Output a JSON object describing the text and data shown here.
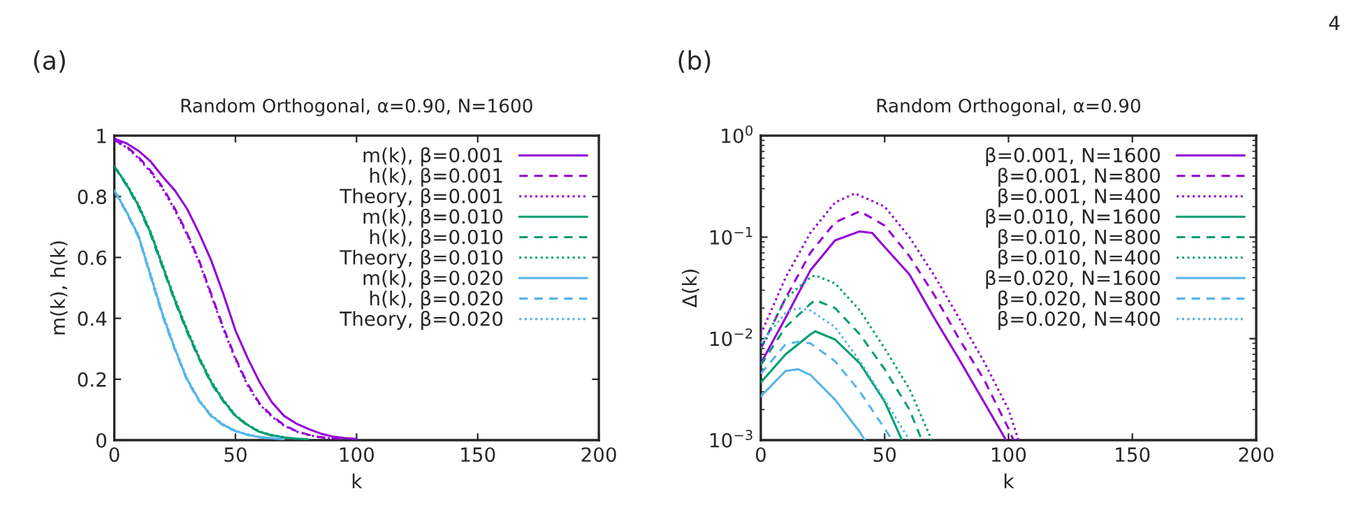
{
  "chart_data": [
    {
      "type": "line",
      "title": "Random Orthogonal, α=0.90, N=1600",
      "xlabel": "k",
      "ylabel": "m(k), h(k)",
      "annotations": [
        "(a)"
      ],
      "x": [
        0,
        5,
        10,
        15,
        20,
        25,
        30,
        35,
        40,
        45,
        50,
        55,
        60,
        65,
        70,
        75,
        80,
        85,
        90,
        95,
        100
      ],
      "xlim": [
        0,
        200
      ],
      "xticks": [
        0,
        50,
        100,
        150,
        200
      ],
      "ylim": [
        0,
        1
      ],
      "yticks": [
        0,
        0.2,
        0.4,
        0.6,
        0.8,
        1
      ],
      "grid": false,
      "legend": "top right",
      "series": [
        {
          "name": "m(k), β=0.001",
          "color": "#9400d3",
          "line_style": "solid",
          "values": [
            0.99,
            0.975,
            0.95,
            0.915,
            0.865,
            0.82,
            0.76,
            0.68,
            0.59,
            0.48,
            0.36,
            0.27,
            0.19,
            0.125,
            0.08,
            0.055,
            0.037,
            0.022,
            0.012,
            0.007,
            0.004
          ]
        },
        {
          "name": "h(k), β=0.001",
          "color": "#9400d3",
          "line_style": "dashed",
          "x": [
            0,
            5,
            10,
            15,
            20,
            25,
            30,
            35,
            40,
            45,
            50,
            55,
            60,
            65,
            70,
            75,
            80,
            85,
            90,
            95
          ],
          "values": [
            0.985,
            0.965,
            0.93,
            0.885,
            0.83,
            0.76,
            0.68,
            0.59,
            0.48,
            0.37,
            0.27,
            0.185,
            0.12,
            0.08,
            0.05,
            0.03,
            0.018,
            0.01,
            0.006,
            0.004
          ]
        },
        {
          "name": "Theory, β=0.001",
          "color": "#9400d3",
          "line_style": "dotted",
          "x": [
            0,
            5,
            10,
            15,
            20,
            25,
            30,
            35,
            40,
            45,
            50,
            55,
            60,
            65,
            70,
            75,
            80,
            85,
            90
          ],
          "values": [
            0.983,
            0.962,
            0.926,
            0.88,
            0.825,
            0.755,
            0.675,
            0.585,
            0.475,
            0.365,
            0.265,
            0.18,
            0.117,
            0.077,
            0.048,
            0.029,
            0.017,
            0.009,
            0.005
          ]
        },
        {
          "name": "m(k), β=0.010",
          "color": "#009e73",
          "line_style": "solid",
          "x": [
            0,
            5,
            10,
            15,
            20,
            25,
            30,
            35,
            40,
            45,
            50,
            55,
            60,
            65,
            70,
            75,
            80
          ],
          "values": [
            0.9,
            0.84,
            0.77,
            0.68,
            0.57,
            0.46,
            0.36,
            0.27,
            0.19,
            0.13,
            0.08,
            0.05,
            0.027,
            0.016,
            0.009,
            0.005,
            0.003
          ]
        },
        {
          "name": "h(k), β=0.010",
          "color": "#009e73",
          "line_style": "dashed",
          "x": [
            0,
            5,
            10,
            15,
            20,
            25,
            30,
            35,
            40,
            45,
            50,
            55,
            60,
            65,
            70,
            75
          ],
          "values": [
            0.898,
            0.837,
            0.766,
            0.675,
            0.565,
            0.455,
            0.355,
            0.266,
            0.186,
            0.127,
            0.078,
            0.048,
            0.026,
            0.015,
            0.008,
            0.004
          ]
        },
        {
          "name": "Theory, β=0.010",
          "color": "#009e73",
          "line_style": "dotted",
          "x": [
            0,
            5,
            10,
            15,
            20,
            25,
            30,
            35,
            40,
            45,
            50,
            55,
            60,
            65,
            70
          ],
          "values": [
            0.902,
            0.843,
            0.774,
            0.685,
            0.575,
            0.465,
            0.365,
            0.274,
            0.194,
            0.133,
            0.082,
            0.051,
            0.028,
            0.017,
            0.01
          ]
        },
        {
          "name": "m(k), β=0.020",
          "color": "#56b4e9",
          "line_style": "solid",
          "x": [
            0,
            5,
            10,
            15,
            20,
            25,
            30,
            35,
            40,
            45,
            50,
            55,
            60,
            65,
            70
          ],
          "values": [
            0.82,
            0.75,
            0.67,
            0.54,
            0.41,
            0.3,
            0.2,
            0.13,
            0.08,
            0.05,
            0.03,
            0.018,
            0.01,
            0.006,
            0.003
          ]
        },
        {
          "name": "h(k), β=0.020",
          "color": "#56b4e9",
          "line_style": "dashed",
          "x": [
            0,
            5,
            10,
            15,
            20,
            25,
            30,
            35,
            40,
            45,
            50,
            55,
            60,
            65
          ],
          "values": [
            0.818,
            0.747,
            0.666,
            0.535,
            0.405,
            0.296,
            0.197,
            0.128,
            0.078,
            0.048,
            0.029,
            0.017,
            0.009,
            0.005
          ]
        },
        {
          "name": "Theory, β=0.020",
          "color": "#56b4e9",
          "line_style": "dotted",
          "x": [
            0,
            5,
            10,
            15,
            20,
            25,
            30,
            35,
            40,
            45,
            50,
            55,
            60
          ],
          "values": [
            0.822,
            0.753,
            0.674,
            0.545,
            0.415,
            0.304,
            0.203,
            0.132,
            0.082,
            0.052,
            0.031,
            0.019,
            0.011
          ]
        }
      ]
    },
    {
      "type": "line",
      "title": "Random Orthogonal, α=0.90",
      "xlabel": "k",
      "ylabel": "Δ(k)",
      "annotations": [
        "(b)",
        "4"
      ],
      "xlim": [
        0,
        200
      ],
      "xticks": [
        0,
        50,
        100,
        150,
        200
      ],
      "ylim": [
        0.001,
        1
      ],
      "log": "y",
      "yticks": [
        {
          "value": 0.001,
          "label": "10$^{−3}$"
        },
        {
          "value": 0.01,
          "label": "10$^{−2}$"
        },
        {
          "value": 0.1,
          "label": "10$^{−1}$"
        },
        {
          "value": 1,
          "label": "10$^{0}$"
        }
      ],
      "grid": false,
      "legend": "top right",
      "series": [
        {
          "name": "β=0.001, N=1600",
          "color": "#9400d3",
          "line_style": "solid",
          "x": [
            0,
            10,
            20,
            30,
            40,
            45,
            50,
            60,
            70,
            80,
            90,
            99
          ],
          "values": [
            0.0057,
            0.016,
            0.047,
            0.093,
            0.114,
            0.11,
            0.08,
            0.043,
            0.016,
            0.0063,
            0.0024,
            0.001
          ]
        },
        {
          "name": "β=0.001, N=800",
          "color": "#9400d3",
          "line_style": "dashed",
          "x": [
            0,
            10,
            20,
            30,
            40,
            50,
            60,
            70,
            80,
            90,
            100,
            102
          ],
          "values": [
            0.008,
            0.025,
            0.07,
            0.14,
            0.18,
            0.13,
            0.065,
            0.027,
            0.01,
            0.004,
            0.0013,
            0.001
          ]
        },
        {
          "name": "β=0.001, N=400",
          "color": "#9400d3",
          "line_style": "dotted",
          "x": [
            0,
            10,
            20,
            30,
            38,
            50,
            60,
            70,
            80,
            90,
            100,
            104
          ],
          "values": [
            0.011,
            0.04,
            0.11,
            0.22,
            0.27,
            0.2,
            0.1,
            0.042,
            0.016,
            0.006,
            0.002,
            0.001
          ]
        },
        {
          "name": "β=0.010, N=1600",
          "color": "#009e73",
          "line_style": "solid",
          "x": [
            0,
            10,
            20,
            22,
            30,
            40,
            50,
            57
          ],
          "values": [
            0.0037,
            0.007,
            0.011,
            0.0118,
            0.0098,
            0.0057,
            0.0024,
            0.001
          ]
        },
        {
          "name": "β=0.010, N=800",
          "color": "#009e73",
          "line_style": "dashed",
          "x": [
            0,
            10,
            20,
            22,
            30,
            40,
            50,
            60,
            65
          ],
          "values": [
            0.0055,
            0.013,
            0.022,
            0.024,
            0.02,
            0.011,
            0.005,
            0.002,
            0.001
          ]
        },
        {
          "name": "β=0.010, N=400",
          "color": "#009e73",
          "line_style": "dotted",
          "x": [
            0,
            10,
            20,
            22,
            30,
            40,
            50,
            60,
            69
          ],
          "values": [
            0.008,
            0.025,
            0.04,
            0.042,
            0.035,
            0.019,
            0.008,
            0.0032,
            0.001
          ]
        },
        {
          "name": "β=0.020, N=1600",
          "color": "#56b4e9",
          "line_style": "solid",
          "x": [
            0,
            10,
            15,
            20,
            30,
            40,
            42
          ],
          "values": [
            0.0027,
            0.0048,
            0.005,
            0.0044,
            0.0025,
            0.0012,
            0.001
          ]
        },
        {
          "name": "β=0.020, N=800",
          "color": "#56b4e9",
          "line_style": "dashed",
          "x": [
            0,
            10,
            15,
            20,
            30,
            40,
            50,
            53
          ],
          "values": [
            0.0045,
            0.0088,
            0.0093,
            0.009,
            0.006,
            0.003,
            0.0013,
            0.001
          ]
        },
        {
          "name": "β=0.020, N=400",
          "color": "#56b4e9",
          "line_style": "dotted",
          "x": [
            0,
            10,
            15,
            20,
            30,
            40,
            50,
            60
          ],
          "values": [
            0.009,
            0.018,
            0.02,
            0.019,
            0.013,
            0.006,
            0.0025,
            0.001
          ]
        }
      ]
    }
  ]
}
